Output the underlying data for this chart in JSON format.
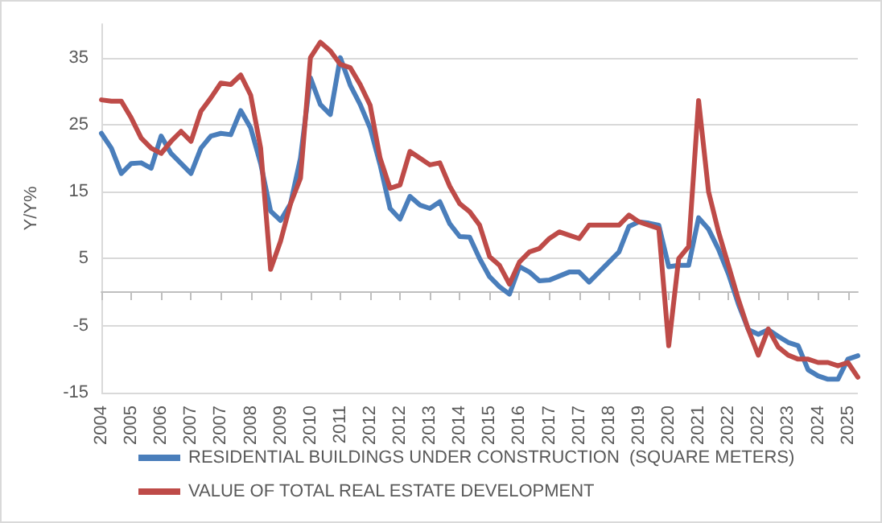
{
  "chart_data": {
    "type": "line",
    "ylabel": "Y/Y%",
    "categories": [
      "2004",
      null,
      null,
      "2005",
      null,
      null,
      "2006",
      null,
      null,
      "2007",
      null,
      null,
      "2007",
      null,
      null,
      "2008",
      null,
      null,
      "2009",
      null,
      null,
      "2010",
      null,
      null,
      "2011",
      null,
      null,
      "2012",
      null,
      null,
      "2012",
      null,
      null,
      "2013",
      null,
      null,
      "2014",
      null,
      null,
      "2015",
      null,
      null,
      "2016",
      null,
      null,
      "2017",
      null,
      null,
      "2017",
      null,
      null,
      "2018",
      null,
      null,
      "2019",
      null,
      null,
      "2020",
      null,
      null,
      "2021",
      null,
      null,
      "2022",
      null,
      null,
      "2022",
      null,
      null,
      "2023",
      null,
      null,
      "2024",
      null,
      null,
      "2025",
      null
    ],
    "series": [
      {
        "name": "RESIDENTIAL BUILDINGS UNDER CONSTRUCTION  (SQUARE METERS)",
        "color": "#4a7ebb",
        "values": [
          23.7,
          21.5,
          17.7,
          19.2,
          19.3,
          18.5,
          23.3,
          20.7,
          19.2,
          17.7,
          21.5,
          23.3,
          23.7,
          23.5,
          27.1,
          24.5,
          19.2,
          12.1,
          10.7,
          13.2,
          20,
          32,
          28,
          26.5,
          35,
          30.9,
          28,
          24.5,
          19,
          12.5,
          10.9,
          14.3,
          13,
          12.5,
          13.5,
          10.2,
          8.3,
          8.2,
          5,
          2.3,
          0.8,
          -0.3,
          3.8,
          3,
          1.7,
          1.8,
          2.4,
          3,
          3,
          1.5,
          3,
          4.5,
          6,
          9.8,
          10.5,
          10.3,
          10,
          3.8,
          4,
          4,
          11.1,
          9.4,
          6.4,
          2.7,
          -1.8,
          -5.6,
          -6.3,
          -5.6,
          -6.6,
          -7.5,
          -8,
          -11.6,
          -12.5,
          -13,
          -13,
          -10,
          -9.5
        ]
      },
      {
        "name": "VALUE OF TOTAL REAL ESTATE DEVELOPMENT",
        "color": "#be4b48",
        "values": [
          28.7,
          28.5,
          28.5,
          26,
          23,
          21.5,
          20.7,
          22.5,
          24,
          22.5,
          27,
          29,
          31.2,
          31,
          32.4,
          29.4,
          21.5,
          3.4,
          7.6,
          13.2,
          17,
          35,
          37.3,
          36,
          34,
          33.5,
          31,
          27.9,
          20,
          15.5,
          16,
          21,
          20,
          19,
          19.3,
          15.8,
          13.2,
          12,
          10,
          5.3,
          4,
          1.2,
          4.5,
          6,
          6.5,
          8,
          9,
          8.5,
          8,
          10,
          10,
          10,
          10,
          11.5,
          10.5,
          10,
          9.5,
          -8,
          5,
          6.8,
          28.6,
          15,
          9,
          4,
          -1.1,
          -5.6,
          -9.4,
          -5.5,
          -8.2,
          -9.4,
          -10,
          -10,
          -10.5,
          -10.5,
          -11,
          -10.5,
          -12.7
        ]
      }
    ],
    "ylim": [
      -15,
      40
    ],
    "yticks": [
      -15,
      -5,
      5,
      15,
      25,
      35
    ],
    "grid": "y",
    "legend": "bottom",
    "marker": "none",
    "line_style": "solid"
  }
}
